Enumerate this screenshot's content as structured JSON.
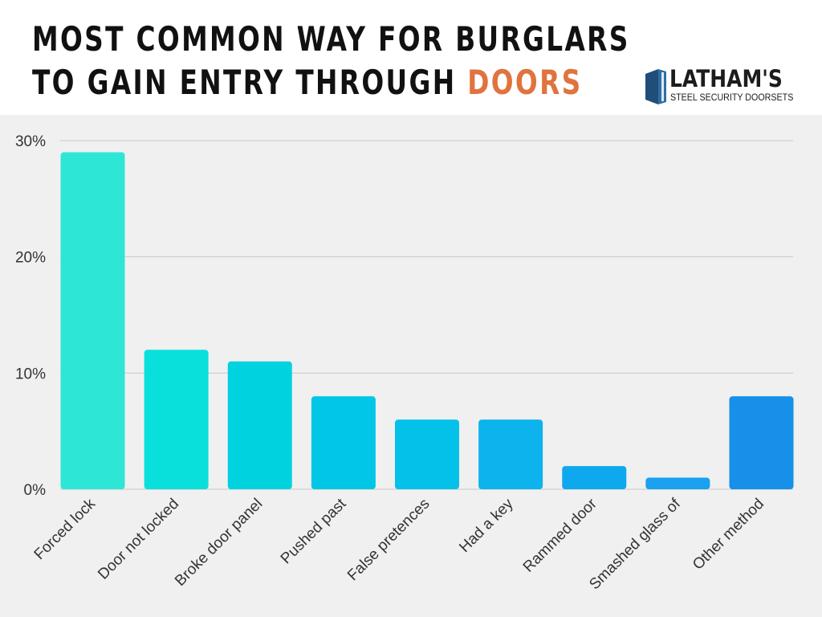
{
  "header": {
    "title_line1": "MOST COMMON WAY FOR BURGLARS",
    "title_line2_prefix": "TO GAIN ENTRY THROUGH ",
    "title_line2_accent": "DOORS",
    "accent_color": "#e0733e"
  },
  "logo": {
    "name": "LATHAM'S",
    "tagline": "STEEL SECURITY DOORSETS",
    "icon": "door-icon",
    "color": "#1f4e79"
  },
  "chart_data": {
    "type": "bar",
    "title": "",
    "xlabel": "",
    "ylabel": "",
    "ylim": [
      0,
      30
    ],
    "yticks": [
      0,
      10,
      20,
      30
    ],
    "ytick_labels": [
      "0%",
      "10%",
      "20%",
      "30%"
    ],
    "grid": true,
    "categories": [
      "Forced lock",
      "Door not locked",
      "Broke door panel",
      "Pushed past",
      "False pretences",
      "Had a key",
      "Rammed door",
      "Smashed glass of",
      "Other method"
    ],
    "values": [
      29,
      12,
      11,
      8,
      6,
      6,
      2,
      1,
      8
    ],
    "colors": [
      "#2ee6d6",
      "#09e0dc",
      "#00d2e0",
      "#01c6e6",
      "#04c1ea",
      "#0cb3ec",
      "#0ea8ef",
      "#1aa1ef",
      "#1690e9"
    ]
  }
}
